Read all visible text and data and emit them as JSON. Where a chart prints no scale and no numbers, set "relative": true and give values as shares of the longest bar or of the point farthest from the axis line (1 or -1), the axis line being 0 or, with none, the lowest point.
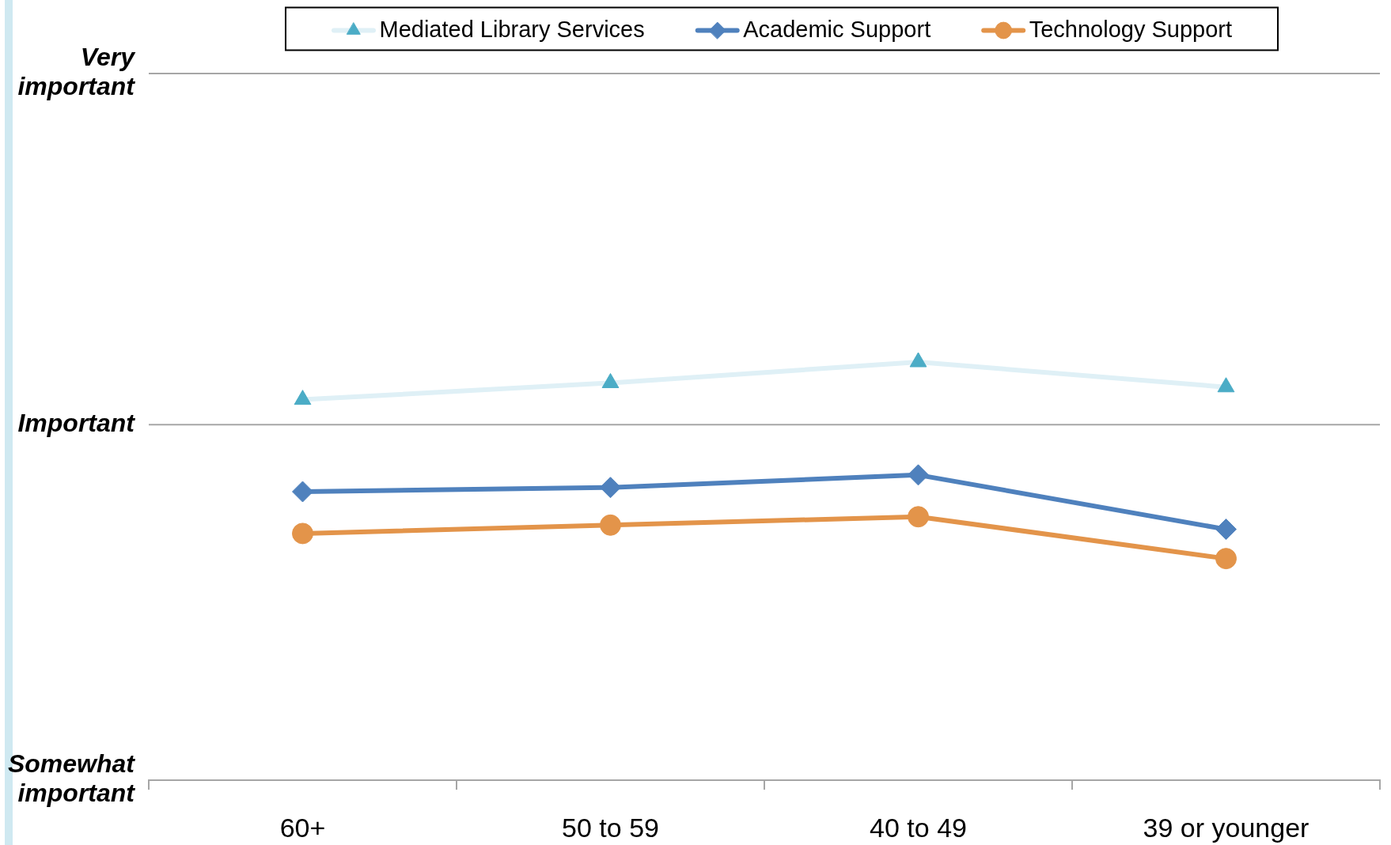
{
  "chart_data": {
    "type": "line",
    "relative": true,
    "categories": [
      "60+",
      "50 to 59",
      "40 to 49",
      "39 or younger"
    ],
    "series": [
      {
        "name": "Mediated Library Services",
        "color": "#dff0f6",
        "colors": [
          "#4bacc6",
          "#4bacc6",
          "#4bacc6",
          "#4bacc6"
        ],
        "marker": "triangle",
        "values": [
          0.91,
          0.95,
          1,
          0.94
        ]
      },
      {
        "name": "Academic Support",
        "color": "#4f81bd",
        "marker": "diamond",
        "values": [
          0.69,
          0.7,
          0.73,
          0.6
        ]
      },
      {
        "name": "Technology Support",
        "color": "#e3944a",
        "marker": "circle",
        "values": [
          0.59,
          0.61,
          0.63,
          0.53
        ]
      }
    ],
    "ref_lines": [
      {
        "axis": "y",
        "value": 0.85,
        "label": "Important",
        "color": "#a6a6a6"
      },
      {
        "axis": "y",
        "value": 1.69,
        "label": "Very important",
        "color": "#a6a6a6"
      }
    ],
    "annotations": [
      "Somewhat important"
    ],
    "legend": "top"
  }
}
